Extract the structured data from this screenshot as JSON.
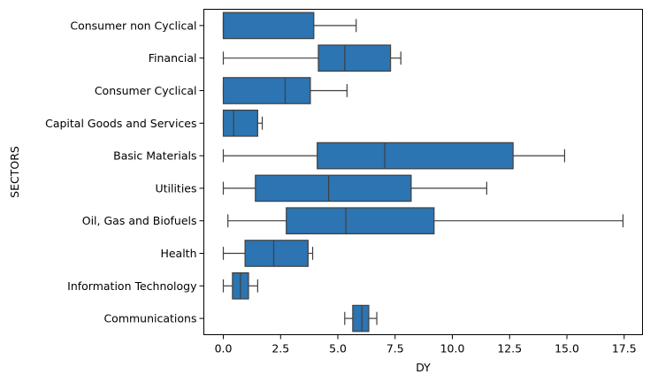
{
  "chart_data": {
    "type": "boxplot",
    "orientation": "horizontal",
    "xlabel": "DY",
    "ylabel": "SECTORS",
    "xlim": [
      -0.85,
      18.3
    ],
    "xticks": [
      0.0,
      2.5,
      5.0,
      7.5,
      10.0,
      12.5,
      15.0,
      17.5
    ],
    "xtick_labels": [
      "0.0",
      "2.5",
      "5.0",
      "7.5",
      "10.0",
      "12.5",
      "15.0",
      "17.5"
    ],
    "grid": false,
    "box_color": "#2c74b2",
    "line_color": "#3f3f3f",
    "categories": [
      "Consumer non Cyclical",
      "Financial",
      "Consumer Cyclical",
      "Capital Goods and Services",
      "Basic Materials",
      "Utilities",
      "Oil, Gas and Biofuels",
      "Health",
      "Information Technology",
      "Communications"
    ],
    "boxes": [
      {
        "whislo": 0.0,
        "q1": 0.0,
        "med": 0.0,
        "q3": 3.95,
        "whishi": 5.8
      },
      {
        "whislo": 0.0,
        "q1": 4.15,
        "med": 5.3,
        "q3": 7.3,
        "whishi": 7.75
      },
      {
        "whislo": 0.0,
        "q1": 0.0,
        "med": 2.7,
        "q3": 3.8,
        "whishi": 5.4
      },
      {
        "whislo": 0.0,
        "q1": 0.0,
        "med": 0.45,
        "q3": 1.5,
        "whishi": 1.7
      },
      {
        "whislo": 0.0,
        "q1": 4.1,
        "med": 7.05,
        "q3": 12.65,
        "whishi": 14.9
      },
      {
        "whislo": 0.0,
        "q1": 1.4,
        "med": 4.6,
        "q3": 8.2,
        "whishi": 11.5
      },
      {
        "whislo": 0.2,
        "q1": 2.75,
        "med": 5.35,
        "q3": 9.2,
        "whishi": 17.45
      },
      {
        "whislo": 0.0,
        "q1": 0.95,
        "med": 2.2,
        "q3": 3.7,
        "whishi": 3.9
      },
      {
        "whislo": 0.0,
        "q1": 0.4,
        "med": 0.75,
        "q3": 1.1,
        "whishi": 1.5
      },
      {
        "whislo": 5.3,
        "q1": 5.65,
        "med": 6.05,
        "q3": 6.35,
        "whishi": 6.7
      }
    ]
  }
}
